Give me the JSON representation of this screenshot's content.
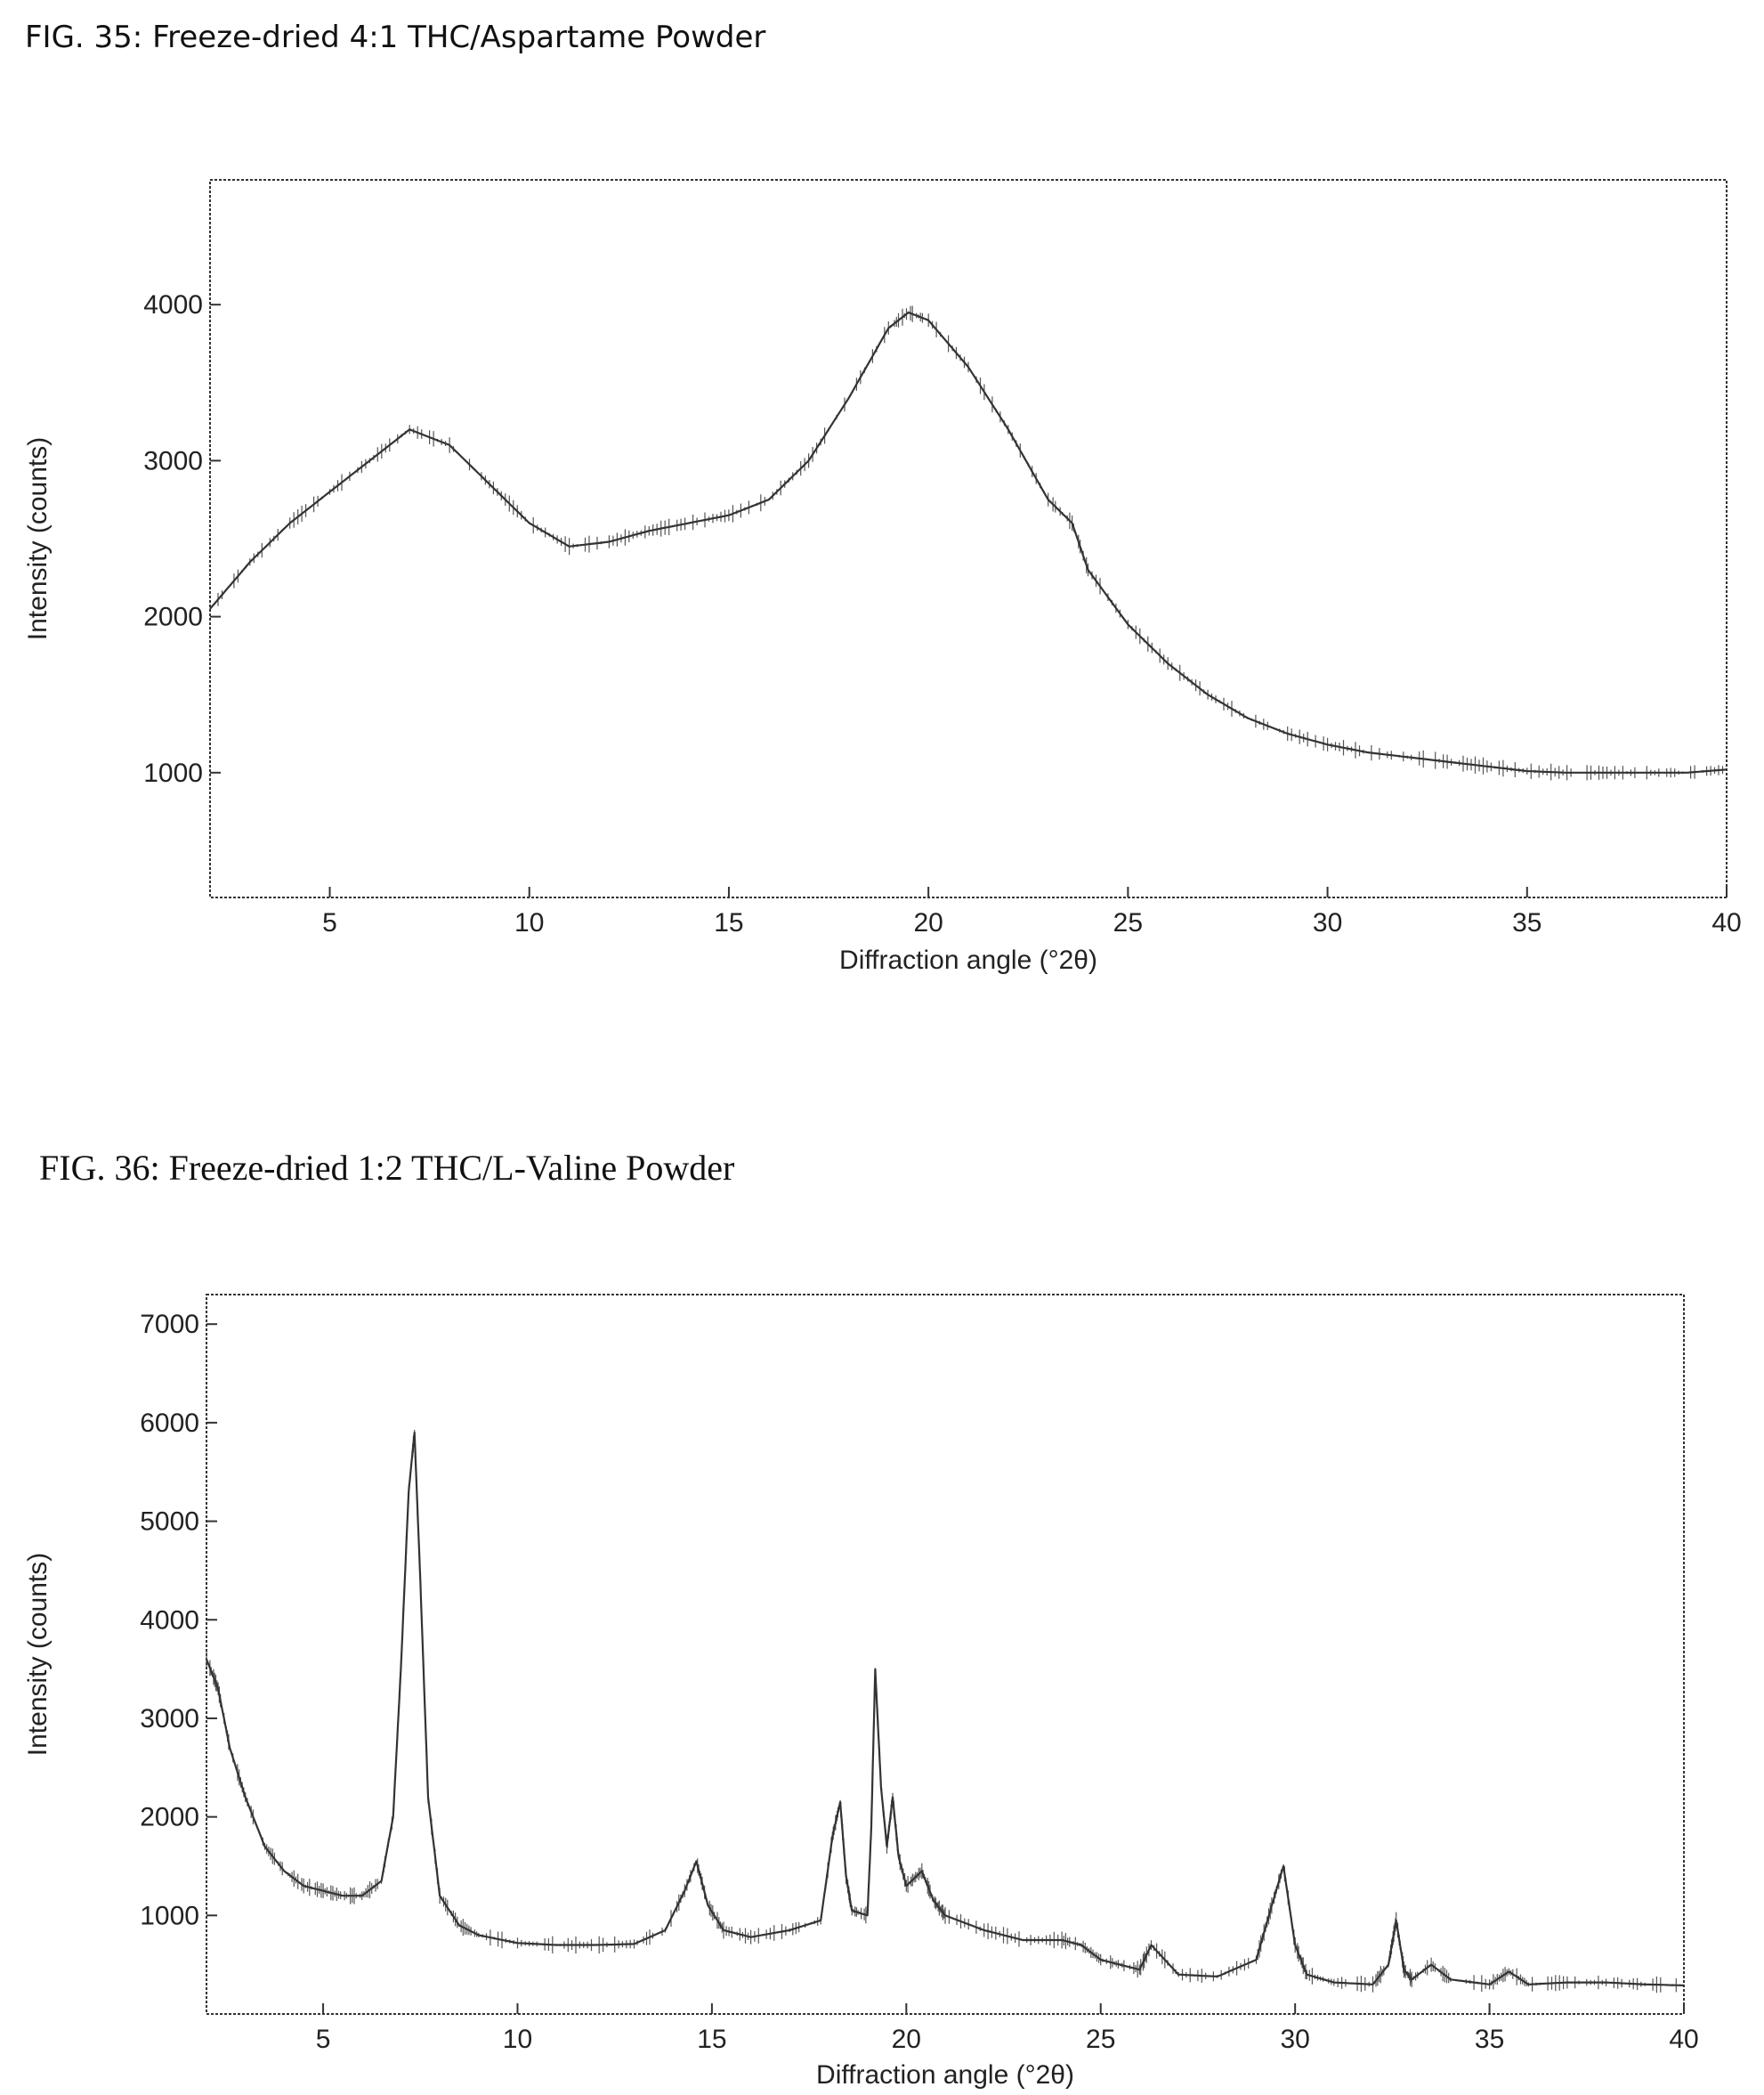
{
  "figures": [
    {
      "title": "FIG. 35: Freeze-dried 4:1 THC/Aspartame Powder"
    },
    {
      "title": "FIG. 36: Freeze-dried 1:2 THC/L-Valine Powder"
    }
  ],
  "chart_data": [
    {
      "type": "line",
      "title": "FIG. 35: Freeze-dried 4:1 THC/Aspartame Powder",
      "xlabel": "Diffraction angle (°2θ)",
      "ylabel": "Intensity (counts)",
      "xlim": [
        2,
        40
      ],
      "ylim": [
        200,
        4800
      ],
      "xticks": [
        5,
        10,
        15,
        20,
        25,
        30,
        35,
        40
      ],
      "yticks": [
        1000,
        2000,
        3000,
        4000
      ],
      "grid": false,
      "series": [
        {
          "x": [
            2,
            3,
            4,
            5,
            6,
            7,
            8,
            9,
            10,
            11,
            12,
            13,
            14,
            15,
            16,
            17,
            18,
            19,
            19.5,
            20,
            21,
            22,
            23,
            23.6,
            24,
            25,
            26,
            27,
            28,
            29,
            30,
            31,
            32,
            33,
            34,
            35,
            36,
            37,
            38,
            39,
            40
          ],
          "values": [
            2050,
            2350,
            2600,
            2800,
            3000,
            3200,
            3100,
            2850,
            2600,
            2450,
            2480,
            2550,
            2600,
            2650,
            2750,
            3000,
            3400,
            3850,
            3950,
            3900,
            3600,
            3200,
            2750,
            2600,
            2300,
            1950,
            1700,
            1500,
            1350,
            1250,
            1180,
            1130,
            1100,
            1070,
            1040,
            1010,
            1000,
            1000,
            1000,
            1000,
            1020
          ]
        }
      ]
    },
    {
      "type": "line",
      "title": "FIG. 36: Freeze-dried 1:2 THC/L-Valine Powder",
      "xlabel": "Diffraction angle (°2θ)",
      "ylabel": "Intensity (counts)",
      "xlim": [
        2,
        40
      ],
      "ylim": [
        0,
        7300
      ],
      "xticks": [
        5,
        10,
        15,
        20,
        25,
        30,
        35,
        40
      ],
      "yticks": [
        1000,
        2000,
        3000,
        4000,
        5000,
        6000,
        7000
      ],
      "grid": false,
      "series": [
        {
          "x": [
            2,
            2.3,
            2.6,
            3,
            3.5,
            4,
            4.5,
            5,
            5.5,
            6,
            6.5,
            6.8,
            7,
            7.2,
            7.35,
            7.5,
            7.7,
            8,
            8.5,
            9,
            10,
            11,
            12,
            13,
            13.8,
            14.3,
            14.6,
            14.9,
            15.3,
            16,
            17,
            17.8,
            18.1,
            18.3,
            18.45,
            18.6,
            19,
            19.1,
            19.2,
            19.35,
            19.5,
            19.65,
            19.8,
            20,
            20.4,
            20.7,
            21,
            22,
            23,
            24,
            24.5,
            25,
            25.5,
            26,
            26.3,
            27,
            28,
            29,
            29.4,
            29.7,
            30,
            30.3,
            31,
            32,
            32.4,
            32.6,
            32.8,
            33,
            33.5,
            34,
            35,
            35.5,
            36,
            37,
            38,
            39,
            40
          ],
          "values": [
            3600,
            3300,
            2700,
            2200,
            1700,
            1450,
            1300,
            1250,
            1200,
            1200,
            1350,
            2000,
            3500,
            5300,
            5900,
            4400,
            2200,
            1200,
            900,
            800,
            720,
            700,
            700,
            710,
            850,
            1250,
            1550,
            1100,
            850,
            780,
            850,
            950,
            1800,
            2150,
            1400,
            1050,
            1000,
            1900,
            3500,
            2300,
            1700,
            2200,
            1600,
            1300,
            1450,
            1150,
            1000,
            850,
            750,
            750,
            700,
            550,
            500,
            450,
            700,
            400,
            380,
            550,
            1100,
            1500,
            700,
            400,
            320,
            300,
            500,
            950,
            450,
            350,
            500,
            350,
            300,
            430,
            300,
            320,
            320,
            300,
            290
          ]
        }
      ]
    }
  ]
}
